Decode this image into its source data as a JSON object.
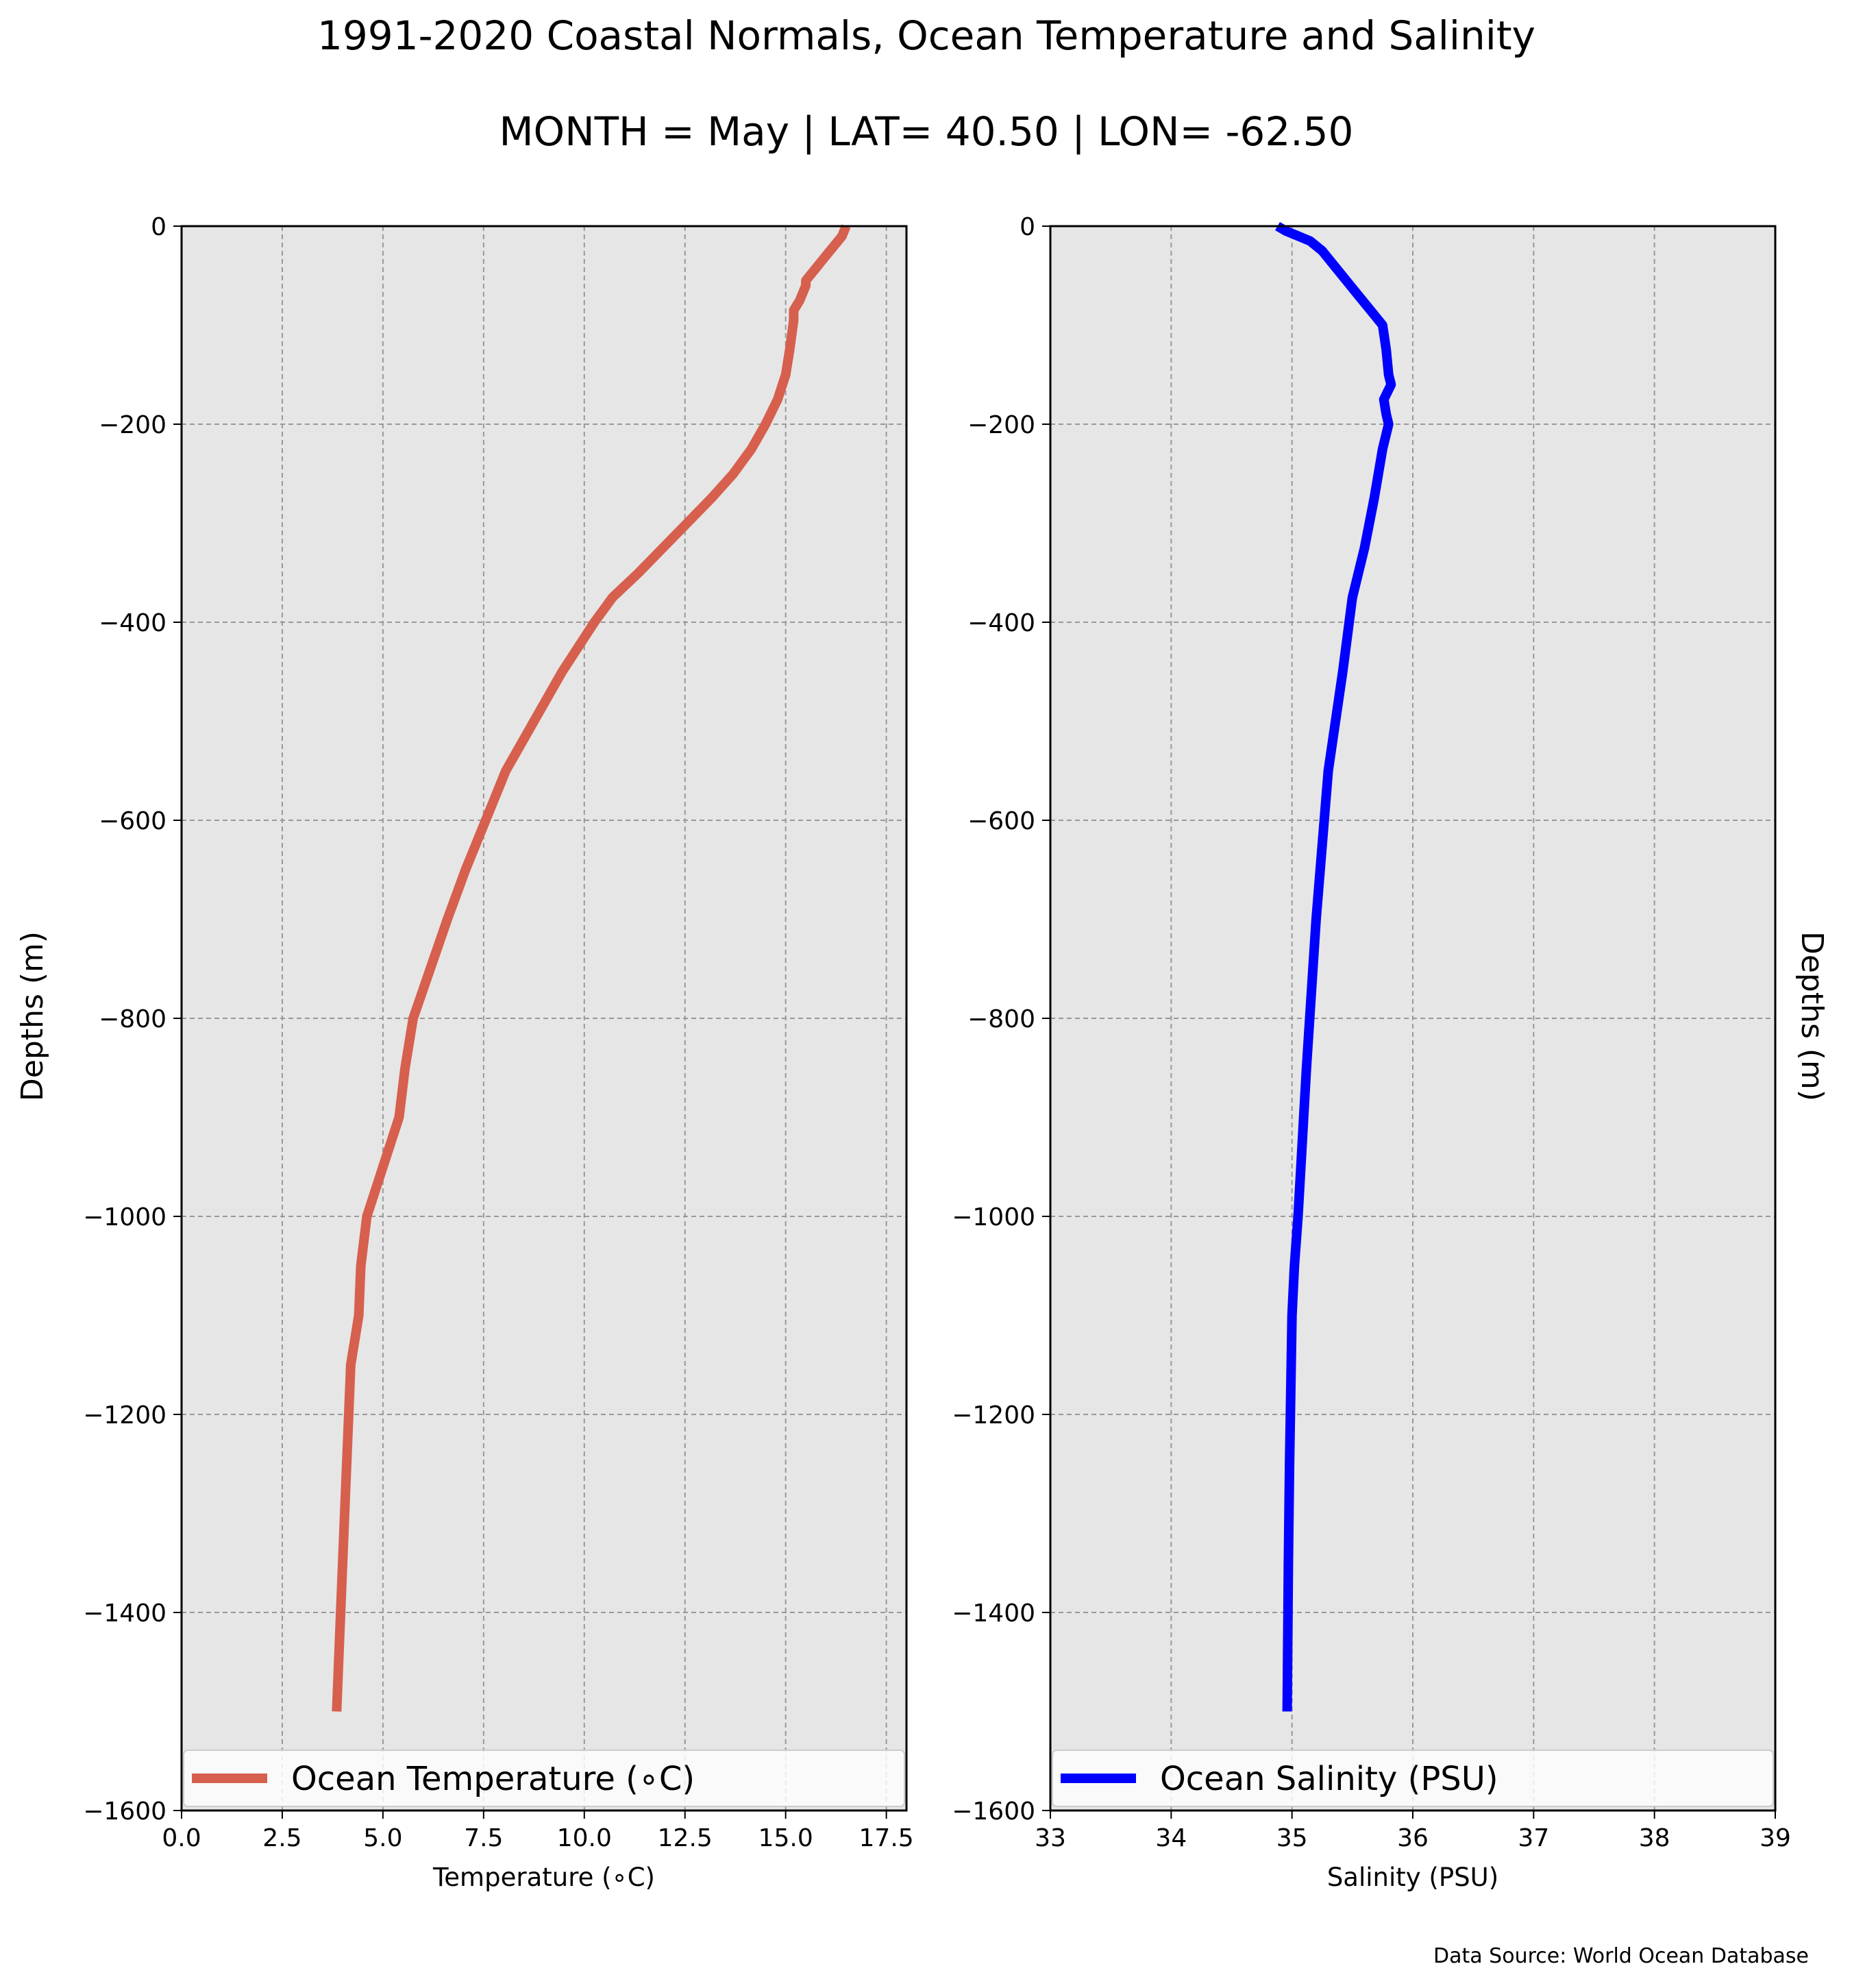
{
  "title_line1": "1991-2020 Coastal Normals, Ocean Temperature and Salinity",
  "title_line2": "MONTH = May | LAT= 40.50 | LON= -62.50",
  "source": "Data Source: World Ocean Database",
  "ylabel": "Depths (m)",
  "plot_background": "#e6e6e6",
  "chart_data": [
    {
      "type": "line",
      "xlabel": "Temperature (∘C)",
      "ylabel": "Depths (m)",
      "xlim": [
        0,
        18
      ],
      "ylim": [
        -1600,
        0
      ],
      "xticks": [
        0,
        2.5,
        5,
        7.5,
        10,
        12.5,
        15,
        17.5
      ],
      "xtick_labels": [
        "0.0",
        "2.5",
        "5.0",
        "7.5",
        "10.0",
        "12.5",
        "15.0",
        "17.5"
      ],
      "yticks": [
        0,
        -200,
        -400,
        -600,
        -800,
        -1000,
        -1200,
        -1400,
        -1600
      ],
      "ytick_labels": [
        "0",
        "−200",
        "−400",
        "−600",
        "−800",
        "−1000",
        "−1200",
        "−1400",
        "−1600"
      ],
      "grid": true,
      "legend_position": "bottom",
      "series": [
        {
          "name": "Ocean Temperature (∘C)",
          "color": "#d6604d",
          "x": [
            16.5,
            16.45,
            16.4,
            16.2,
            16.0,
            15.8,
            15.6,
            15.5,
            15.5,
            15.35,
            15.2,
            15.2,
            15.1,
            15.0,
            14.8,
            14.5,
            14.15,
            13.7,
            13.15,
            12.55,
            11.95,
            11.35,
            10.7,
            10.25,
            9.85,
            9.45,
            8.75,
            8.05,
            7.05,
            6.6,
            5.75,
            5.55,
            5.4,
            5.0,
            4.6,
            4.45,
            4.4,
            4.2,
            4.05,
            3.85
          ],
          "y": [
            0,
            -5,
            -10,
            -20,
            -30,
            -40,
            -50,
            -55,
            -60,
            -75,
            -85,
            -95,
            -125,
            -150,
            -175,
            -200,
            -225,
            -250,
            -275,
            -300,
            -325,
            -350,
            -375,
            -400,
            -425,
            -450,
            -500,
            -550,
            -650,
            -700,
            -800,
            -850,
            -900,
            -950,
            -1000,
            -1050,
            -1100,
            -1150,
            -1300,
            -1500
          ]
        }
      ]
    },
    {
      "type": "line",
      "xlabel": "Salinity (PSU)",
      "ylabel": "Depths (m)",
      "xlim": [
        33,
        39
      ],
      "ylim": [
        -1600,
        0
      ],
      "xticks": [
        33,
        34,
        35,
        36,
        37,
        38,
        39
      ],
      "xtick_labels": [
        "33",
        "34",
        "35",
        "36",
        "37",
        "38",
        "39"
      ],
      "yticks": [
        0,
        -200,
        -400,
        -600,
        -800,
        -1000,
        -1200,
        -1400,
        -1600
      ],
      "ytick_labels": [
        "0",
        "−200",
        "−400",
        "−600",
        "−800",
        "−1000",
        "−1200",
        "−1400",
        "−1600"
      ],
      "grid": true,
      "legend_position": "bottom",
      "series": [
        {
          "name": "Ocean Salinity (PSU)",
          "color": "#0000ff",
          "x": [
            34.88,
            34.95,
            35.05,
            35.15,
            35.25,
            35.35,
            35.45,
            35.55,
            35.65,
            35.75,
            35.78,
            35.8,
            35.82,
            35.76,
            35.78,
            35.8,
            35.75,
            35.68,
            35.6,
            35.5,
            35.42,
            35.3,
            35.2,
            35.12,
            35.05,
            35.02,
            35.0,
            34.98,
            34.97,
            34.96
          ],
          "y": [
            0,
            -5,
            -10,
            -15,
            -25,
            -40,
            -55,
            -70,
            -85,
            -100,
            -125,
            -150,
            -160,
            -175,
            -190,
            -200,
            -225,
            -275,
            -325,
            -375,
            -450,
            -550,
            -700,
            -850,
            -1000,
            -1050,
            -1100,
            -1250,
            -1350,
            -1500
          ]
        }
      ]
    }
  ]
}
